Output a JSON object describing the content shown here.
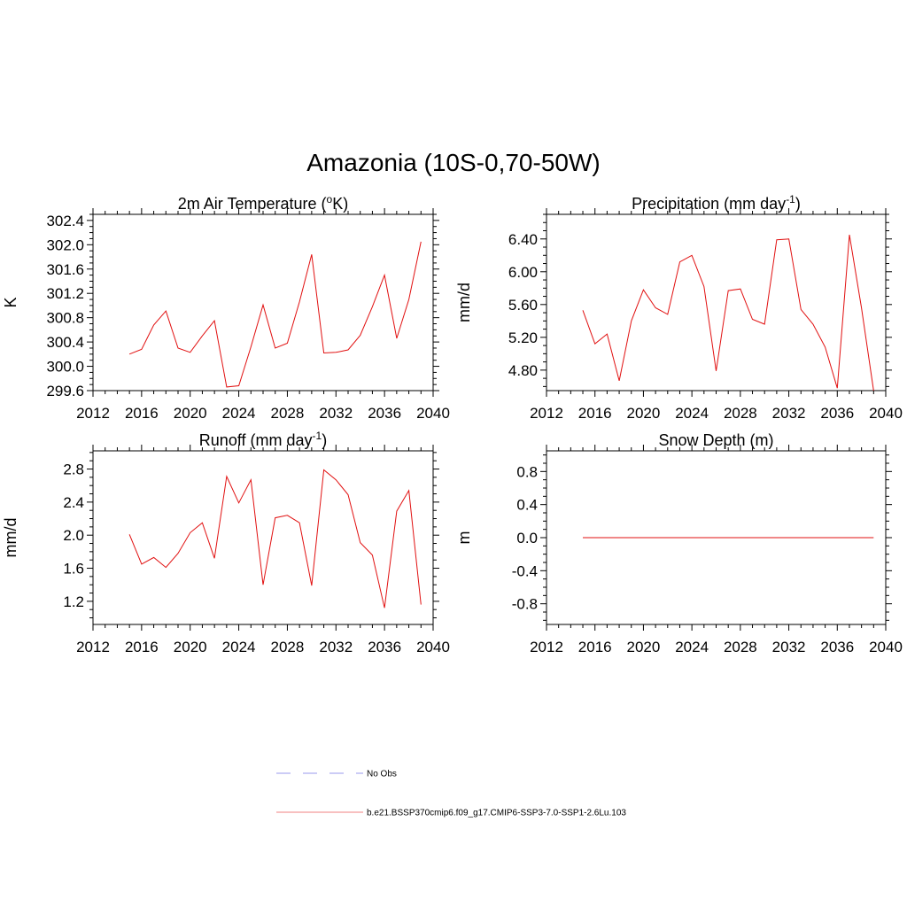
{
  "title": "Amazonia (10S-0,70-50W)",
  "colors": {
    "series": "#e11010",
    "axis": "#000000",
    "obs": "#9999ee"
  },
  "legend": {
    "obs_label": "No Obs",
    "model_label": "b.e21.BSSP370cmip6.f09_g17.CMIP6-SSP3-7.0-SSP1-2.6Lu.103"
  },
  "chart_data": [
    {
      "type": "line",
      "title_main": "2m Air Temperature (",
      "title_sup_pre": "o",
      "title_after_sup": "K)",
      "title_end": "",
      "ylabel": "K",
      "xlim": [
        2012,
        2040
      ],
      "xticks": [
        2012,
        2016,
        2020,
        2024,
        2028,
        2032,
        2036,
        2040
      ],
      "ylim": [
        299.6,
        302.5
      ],
      "yticks": [
        299.6,
        300.0,
        300.4,
        300.8,
        301.2,
        301.6,
        302.0,
        302.4
      ],
      "ytick_labels": [
        "299.6",
        "300.0",
        "300.4",
        "300.8",
        "301.2",
        "301.6",
        "302.0",
        "302.4"
      ],
      "x": [
        2015,
        2016,
        2017,
        2018,
        2019,
        2020,
        2021,
        2022,
        2023,
        2024,
        2025,
        2026,
        2027,
        2028,
        2029,
        2030,
        2031,
        2032,
        2033,
        2034,
        2035,
        2036,
        2037,
        2038,
        2039
      ],
      "values": [
        300.2,
        300.28,
        300.68,
        300.91,
        300.3,
        300.23,
        300.5,
        300.75,
        299.66,
        299.68,
        300.32,
        301.01,
        300.3,
        300.38,
        301.06,
        301.84,
        300.22,
        300.23,
        300.27,
        300.51,
        300.98,
        301.5,
        300.46,
        301.1,
        302.05
      ]
    },
    {
      "type": "line",
      "title_main": "Precipitation (mm day",
      "title_sup_pre": "-1",
      "title_after_sup": ")",
      "title_end": "",
      "ylabel": "mm/d",
      "xlim": [
        2012,
        2040
      ],
      "xticks": [
        2012,
        2016,
        2020,
        2024,
        2028,
        2032,
        2036,
        2040
      ],
      "ylim": [
        4.55,
        6.7
      ],
      "yticks": [
        4.8,
        5.2,
        5.6,
        6.0,
        6.4
      ],
      "ytick_labels": [
        "4.80",
        "5.20",
        "5.60",
        "6.00",
        "6.40"
      ],
      "x": [
        2015,
        2016,
        2017,
        2018,
        2019,
        2020,
        2021,
        2022,
        2023,
        2024,
        2025,
        2026,
        2027,
        2028,
        2029,
        2030,
        2031,
        2032,
        2033,
        2034,
        2035,
        2036,
        2037,
        2038,
        2039
      ],
      "values": [
        5.53,
        5.12,
        5.24,
        4.67,
        5.4,
        5.78,
        5.56,
        5.48,
        6.12,
        6.2,
        5.82,
        4.79,
        5.77,
        5.79,
        5.42,
        5.36,
        6.39,
        6.4,
        5.54,
        5.36,
        5.08,
        4.58,
        6.45,
        5.56,
        4.55
      ]
    },
    {
      "type": "line",
      "title_main": "Runoff (mm day",
      "title_sup_pre": "-1",
      "title_after_sup": ")",
      "title_end": "",
      "ylabel": "mm/d",
      "xlim": [
        2012,
        2040
      ],
      "xticks": [
        2012,
        2016,
        2020,
        2024,
        2028,
        2032,
        2036,
        2040
      ],
      "ylim": [
        0.92,
        3.02
      ],
      "yticks": [
        1.2,
        1.6,
        2.0,
        2.4,
        2.8
      ],
      "ytick_labels": [
        "1.2",
        "1.6",
        "2.0",
        "2.4",
        "2.8"
      ],
      "x": [
        2015,
        2016,
        2017,
        2018,
        2019,
        2020,
        2021,
        2022,
        2023,
        2024,
        2025,
        2026,
        2027,
        2028,
        2029,
        2030,
        2031,
        2032,
        2033,
        2034,
        2035,
        2036,
        2037,
        2038,
        2039
      ],
      "values": [
        2.01,
        1.65,
        1.73,
        1.61,
        1.78,
        2.03,
        2.15,
        1.72,
        2.71,
        2.39,
        2.67,
        1.4,
        2.21,
        2.24,
        2.15,
        1.39,
        2.79,
        2.67,
        2.49,
        1.91,
        1.76,
        1.12,
        2.29,
        2.54,
        1.16
      ]
    },
    {
      "type": "line",
      "title_main": "Snow Depth (m)",
      "title_sup_pre": "",
      "title_after_sup": "",
      "title_end": "",
      "ylabel": "m",
      "xlim": [
        2012,
        2040
      ],
      "xticks": [
        2012,
        2016,
        2020,
        2024,
        2028,
        2032,
        2036,
        2040
      ],
      "ylim": [
        -1.05,
        1.05
      ],
      "yticks": [
        -0.8,
        -0.4,
        0.0,
        0.4,
        0.8
      ],
      "ytick_labels": [
        "-0.8",
        "-0.4",
        "0.0",
        "0.4",
        "0.8"
      ],
      "x": [
        2015,
        2039
      ],
      "values": [
        0.0,
        0.0
      ]
    }
  ]
}
